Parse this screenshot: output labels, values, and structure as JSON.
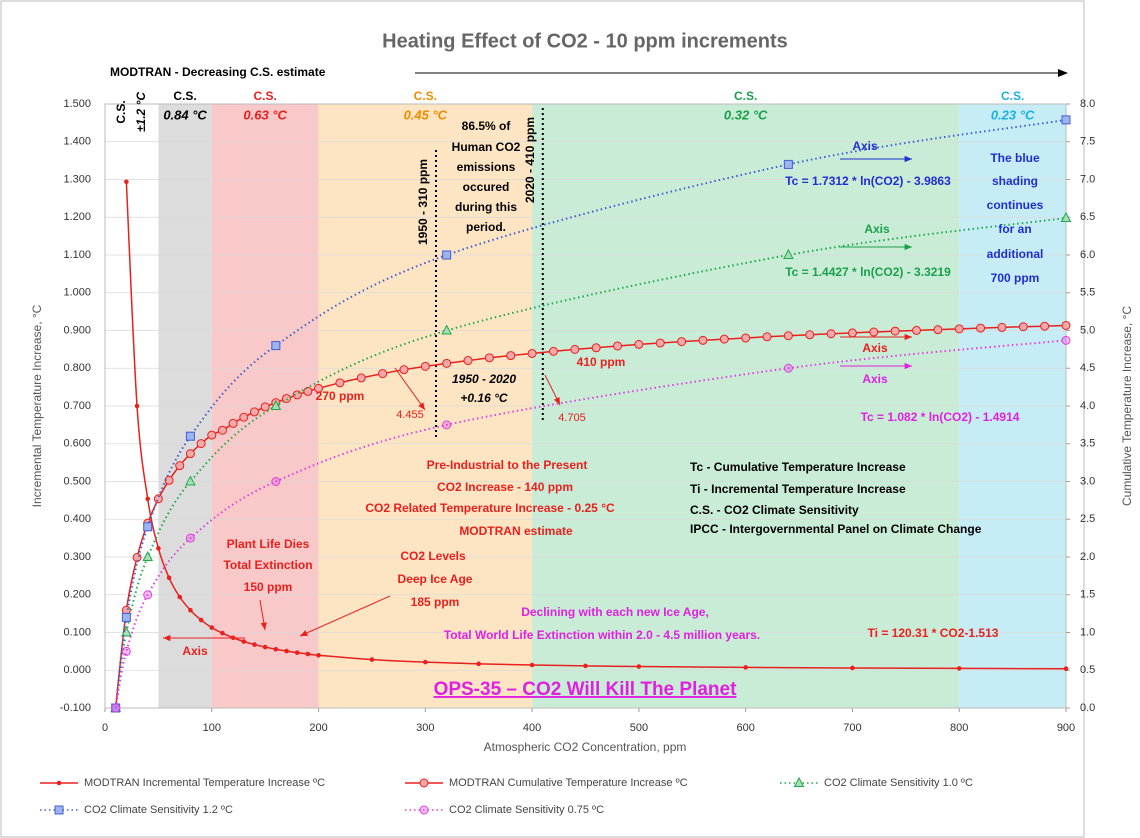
{
  "chart_data": {
    "type": "line",
    "title": "Heating Effect of CO2 - 10 ppm increments",
    "subtitle": "MODTRAN  - Decreasing C.S. estimate",
    "x_label": "Atmospheric CO2 Concentration, ppm",
    "y_label": "Incremental Temperature Increase, °C",
    "y2_label": "Cumulative Temperature Increase, °C",
    "xlim": [
      0,
      900
    ],
    "xticks": [
      0,
      100,
      200,
      300,
      400,
      500,
      600,
      700,
      800,
      900
    ],
    "ylim": [
      -0.1,
      1.5
    ],
    "yticks": [
      {
        "value": -0.1,
        "label": "-0.100"
      },
      {
        "value": 0,
        "label": "0.000"
      },
      {
        "value": 0.1,
        "label": "0.100"
      },
      {
        "value": 0.2,
        "label": "0.200"
      },
      {
        "value": 0.3,
        "label": "0.300"
      },
      {
        "value": 0.4,
        "label": "0.400"
      },
      {
        "value": 0.5,
        "label": "0.500"
      },
      {
        "value": 0.6,
        "label": "0.600"
      },
      {
        "value": 0.7,
        "label": "0.700"
      },
      {
        "value": 0.8,
        "label": "0.800"
      },
      {
        "value": 0.9,
        "label": "0.900"
      },
      {
        "value": 1,
        "label": "1.000"
      },
      {
        "value": 1.1,
        "label": "1.100"
      },
      {
        "value": 1.2,
        "label": "1.200"
      },
      {
        "value": 1.3,
        "label": "1.300"
      },
      {
        "value": 1.4,
        "label": "1.400"
      },
      {
        "value": 1.5,
        "label": "1.500"
      }
    ],
    "y2lim": [
      0,
      8
    ],
    "y2ticks": [
      {
        "value": 0,
        "label": "0.0"
      },
      {
        "value": 0.5,
        "label": "0.5"
      },
      {
        "value": 1,
        "label": "1.0"
      },
      {
        "value": 1.5,
        "label": "1.5"
      },
      {
        "value": 2,
        "label": "2.0"
      },
      {
        "value": 2.5,
        "label": "2.5"
      },
      {
        "value": 3,
        "label": "3.0"
      },
      {
        "value": 3.5,
        "label": "3.5"
      },
      {
        "value": 4,
        "label": "4.0"
      },
      {
        "value": 4.5,
        "label": "4.5"
      },
      {
        "value": 5,
        "label": "5.0"
      },
      {
        "value": 5.5,
        "label": "5.5"
      },
      {
        "value": 6,
        "label": "6.0"
      },
      {
        "value": 6.5,
        "label": "6.5"
      },
      {
        "value": 7,
        "label": "7.0"
      },
      {
        "value": 7.5,
        "label": "7.5"
      },
      {
        "value": 8,
        "label": "8.0"
      }
    ],
    "grid": true,
    "bands": [
      {
        "from": 50,
        "to": 100,
        "label": "C.S.",
        "value_label": "0.84 °C",
        "color": "#dcdcdc",
        "text_color": "#000000"
      },
      {
        "from": 100,
        "to": 200,
        "label": "C.S.",
        "value_label": "0.63 °C",
        "color": "#f9c8c8",
        "text_color": "#e8201e"
      },
      {
        "from": 200,
        "to": 400,
        "label": "C.S.",
        "value_label": "0.45 °C",
        "color": "#fde5c4",
        "text_color": "#f08c00"
      },
      {
        "from": 400,
        "to": 800,
        "label": "C.S.",
        "value_label": "0.32 °C",
        "color": "#c9ecd6",
        "text_color": "#1aa04a"
      },
      {
        "from": 800,
        "to": 900,
        "label": "C.S.",
        "value_label": "0.23 °C",
        "color": "#c6ecf6",
        "text_color": "#1ab0e0"
      }
    ],
    "vlines": [
      {
        "x": 310,
        "label": "1950 - 310 ppm"
      },
      {
        "x": 410,
        "label": "2020 - 410 ppm"
      }
    ],
    "series": [
      {
        "name": "MODTRAN Incremental Temperature Increase ºC",
        "color": "#e8201e",
        "marker": "dot",
        "dash": "solid",
        "x": [
          20,
          30,
          40,
          50,
          60,
          70,
          80,
          90,
          100,
          110,
          120,
          130,
          140,
          150,
          160,
          170,
          180,
          190,
          200,
          250,
          300,
          350,
          400,
          450,
          500,
          600,
          700,
          800,
          900
        ],
        "values": [
          1.294,
          0.7,
          0.454,
          0.323,
          0.245,
          0.194,
          0.159,
          0.133,
          0.113,
          0.0982,
          0.0861,
          0.0761,
          0.068,
          0.0614,
          0.0556,
          0.0508,
          0.0466,
          0.0429,
          0.0397,
          0.0283,
          0.0215,
          0.017,
          0.0139,
          0.0116,
          0.0099,
          0.0075,
          0.006,
          0.0049,
          0.0041
        ]
      },
      {
        "name": "MODTRAN Cumulative Temperature Increase ºC",
        "color": "#e8201e",
        "marker": "circle",
        "dash": "solid",
        "axis": "y2",
        "x": [
          10,
          20,
          30,
          40,
          50,
          60,
          70,
          80,
          90,
          100,
          110,
          120,
          130,
          140,
          150,
          160,
          170,
          180,
          190,
          200,
          220,
          240,
          260,
          280,
          300,
          320,
          340,
          360,
          380,
          400,
          420,
          440,
          460,
          480,
          500,
          520,
          540,
          560,
          580,
          600,
          620,
          640,
          660,
          680,
          700,
          720,
          740,
          760,
          780,
          800,
          820,
          840,
          860,
          880,
          900
        ],
        "values": [
          0,
          1.294,
          1.994,
          2.448,
          2.771,
          3.016,
          3.21,
          3.369,
          3.502,
          3.615,
          3.679,
          3.77,
          3.851,
          3.922,
          3.988,
          4.044,
          4.1,
          4.148,
          4.193,
          4.234,
          4.307,
          4.372,
          4.429,
          4.481,
          4.525,
          4.565,
          4.602,
          4.638,
          4.668,
          4.696,
          4.724,
          4.75,
          4.771,
          4.795,
          4.816,
          4.835,
          4.853,
          4.87,
          4.886,
          4.9,
          4.917,
          4.931,
          4.943,
          4.957,
          4.968,
          4.98,
          4.992,
          5.001,
          5.011,
          5.022,
          5.032,
          5.041,
          5.05,
          5.057,
          5.067
        ]
      },
      {
        "name": "CO2 Climate Sensitivity 1.0 ºC",
        "color": "#21a84c",
        "marker": "triangle",
        "dash": "dotted",
        "axis": "y2",
        "x": [
          10,
          20,
          40,
          80,
          160,
          320,
          640,
          900
        ],
        "values": [
          0,
          1,
          2,
          3,
          4,
          5,
          6,
          6.49
        ]
      },
      {
        "name": "CO2 Climate Sensitivity 1.2 ºC",
        "color": "#4060d0",
        "marker": "square",
        "dash": "dotted",
        "axis": "y2",
        "x": [
          10,
          20,
          40,
          80,
          160,
          320,
          640,
          900
        ],
        "values": [
          0,
          1.2,
          2.4,
          3.6,
          4.8,
          6,
          7.2,
          7.79
        ]
      },
      {
        "name": "CO2 Climate Sensitivity 0.75 ºC",
        "color": "#e040e0",
        "marker": "circle",
        "dash": "dotted",
        "axis": "y2",
        "x": [
          10,
          20,
          40,
          80,
          160,
          320,
          640,
          900
        ],
        "values": [
          0,
          0.75,
          1.5,
          2.25,
          3,
          3.75,
          4.5,
          4.87
        ]
      }
    ],
    "annotations": [
      "C.S.",
      "±1.2 °C",
      "86.5% of",
      "Human CO2",
      "emissions",
      "occured",
      "during this",
      "period.",
      "Axis",
      "Tc = 1.7312 * ln(CO2) - 3.9863",
      "The blue",
      "shading",
      "continues",
      "for an",
      "additional",
      "700 ppm",
      "Axis",
      "Tc = 1.4427 * ln(CO2) - 3.3219",
      "Axis",
      "Axis",
      "Tc = 1.082 * ln(CO2) - 1.4914",
      "410 ppm",
      "270 ppm",
      "4.455",
      "4.705",
      "1950 - 2020",
      "+0.16 °C",
      "Pre-Industrial to the Present",
      "CO2 Increase - 140 ppm",
      "CO2 Related Temperature Increase - 0.25 °C",
      "MODTRAN estimate",
      "Tc - Cumulative Temperature Increase",
      "Ti - Incremental Temperature Increase",
      "C.S. - CO2 Climate Sensitivity",
      "IPCC - Intergovernmental Panel on Climate Change",
      "Plant Life Dies",
      "Total Extinction",
      "150 ppm",
      "CO2 Levels",
      "Deep Ice Age",
      "185 ppm",
      "Declining with each new Ice Age,",
      "Total World Life Extinction within 2.0 - 4.5 million years.",
      "Ti = 120.31 * CO2-1.513",
      "Axis",
      "OPS-35 – CO2 Will Kill The Planet"
    ]
  }
}
